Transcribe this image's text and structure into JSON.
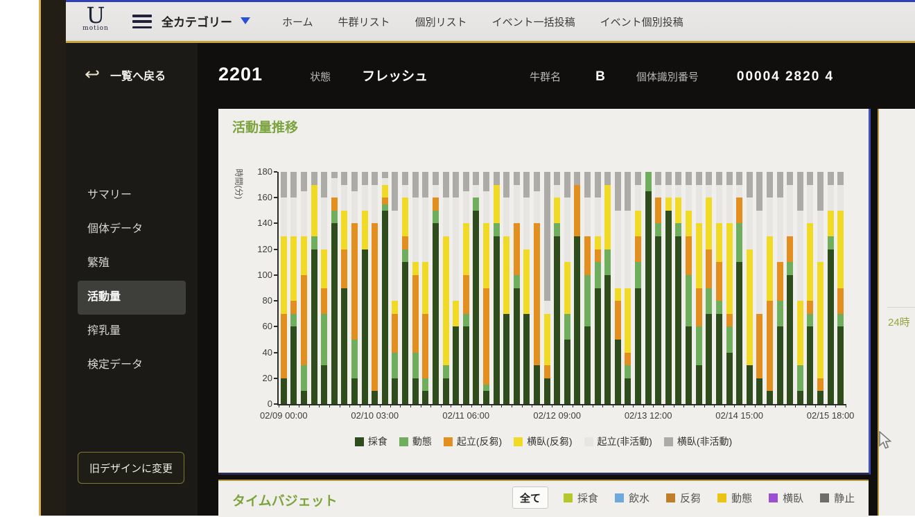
{
  "topbar": {
    "logo": {
      "main": "U",
      "sub": "motion"
    },
    "category_label": "全カテゴリー",
    "nav_items": [
      "ホーム",
      "牛群リスト",
      "個別リスト",
      "イベント一括投稿",
      "イベント個別投稿"
    ]
  },
  "sidebar": {
    "back_label": "一覧へ戻る",
    "items": [
      {
        "label": "サマリー",
        "active": false
      },
      {
        "label": "個体データ",
        "active": false
      },
      {
        "label": "繁殖",
        "active": false
      },
      {
        "label": "活動量",
        "active": true
      },
      {
        "label": "搾乳量",
        "active": false
      },
      {
        "label": "検定データ",
        "active": false
      }
    ],
    "old_design_button": "旧デザインに変更"
  },
  "header": {
    "cow_id": "2201",
    "fields": [
      {
        "label": "状態",
        "value": "フレッシュ"
      },
      {
        "label": "牛群名",
        "value": "B"
      },
      {
        "label": "個体識別番号",
        "value": "00004 2820 4"
      }
    ]
  },
  "activity_card": {
    "title": "活動量推移"
  },
  "chart_data": {
    "type": "bar",
    "stacked": true,
    "title": "活動量推移",
    "xlabel": "",
    "ylabel": "時間(分)",
    "ylim": [
      0,
      180
    ],
    "yticks": [
      0,
      20,
      40,
      60,
      80,
      100,
      120,
      140,
      160,
      180
    ],
    "bar_interval_hours": 3,
    "first_bar_time": "02/09 00:00",
    "xtick_labels": [
      "02/09 00:00",
      "02/10 03:00",
      "02/11 06:00",
      "02/12 09:00",
      "02/13 12:00",
      "02/14 15:00",
      "02/15 18:00"
    ],
    "xtick_bar_indexes": [
      0,
      9,
      18,
      27,
      36,
      45,
      54
    ],
    "legend_position": "bottom",
    "grid": false,
    "series_names": [
      "採食",
      "動態",
      "起立(反芻)",
      "横臥(反芻)",
      "起立(非活動)",
      "横臥(非活動)"
    ],
    "series_colors": [
      "#2e4c1c",
      "#6fae5c",
      "#e28f1f",
      "#f1da25",
      "#e7e6e2",
      "#acaba8"
    ],
    "bars": [
      [
        20,
        0,
        50,
        60,
        30,
        20
      ],
      [
        60,
        10,
        10,
        50,
        30,
        20
      ],
      [
        10,
        20,
        70,
        30,
        35,
        15
      ],
      [
        120,
        10,
        0,
        40,
        0,
        10
      ],
      [
        30,
        40,
        20,
        30,
        40,
        20
      ],
      [
        140,
        10,
        10,
        0,
        15,
        5
      ],
      [
        90,
        0,
        30,
        30,
        20,
        10
      ],
      [
        20,
        30,
        90,
        0,
        25,
        15
      ],
      [
        120,
        0,
        0,
        30,
        20,
        10
      ],
      [
        10,
        0,
        130,
        0,
        30,
        10
      ],
      [
        150,
        5,
        5,
        10,
        5,
        5
      ],
      [
        20,
        20,
        30,
        10,
        70,
        30
      ],
      [
        110,
        10,
        10,
        30,
        10,
        10
      ],
      [
        20,
        20,
        60,
        10,
        50,
        20
      ],
      [
        10,
        10,
        50,
        40,
        50,
        20
      ],
      [
        140,
        10,
        10,
        0,
        10,
        10
      ],
      [
        20,
        10,
        0,
        100,
        30,
        20
      ],
      [
        60,
        0,
        0,
        20,
        80,
        20
      ],
      [
        60,
        10,
        30,
        40,
        25,
        15
      ],
      [
        150,
        10,
        0,
        0,
        10,
        10
      ],
      [
        10,
        5,
        75,
        50,
        25,
        15
      ],
      [
        130,
        10,
        0,
        30,
        0,
        10
      ],
      [
        70,
        0,
        0,
        60,
        30,
        20
      ],
      [
        90,
        10,
        40,
        0,
        30,
        10
      ],
      [
        70,
        0,
        0,
        50,
        40,
        20
      ],
      [
        30,
        0,
        110,
        0,
        25,
        15
      ],
      [
        20,
        0,
        10,
        40,
        10,
        100
      ],
      [
        130,
        10,
        0,
        20,
        10,
        10
      ],
      [
        50,
        20,
        0,
        40,
        50,
        20
      ],
      [
        130,
        0,
        40,
        0,
        0,
        10
      ],
      [
        60,
        40,
        30,
        0,
        30,
        20
      ],
      [
        90,
        20,
        10,
        10,
        30,
        20
      ],
      [
        100,
        20,
        0,
        50,
        0,
        10
      ],
      [
        50,
        0,
        30,
        10,
        60,
        30
      ],
      [
        20,
        10,
        10,
        50,
        60,
        30
      ],
      [
        90,
        20,
        20,
        20,
        20,
        10
      ],
      [
        165,
        15,
        0,
        0,
        0,
        0
      ],
      [
        130,
        10,
        20,
        0,
        10,
        10
      ],
      [
        150,
        0,
        0,
        10,
        10,
        10
      ],
      [
        130,
        10,
        0,
        20,
        10,
        10
      ],
      [
        60,
        40,
        30,
        20,
        20,
        10
      ],
      [
        30,
        30,
        30,
        50,
        30,
        10
      ],
      [
        70,
        20,
        30,
        40,
        10,
        10
      ],
      [
        70,
        10,
        30,
        30,
        30,
        10
      ],
      [
        40,
        20,
        10,
        70,
        30,
        10
      ],
      [
        110,
        30,
        20,
        0,
        10,
        10
      ],
      [
        30,
        0,
        0,
        90,
        40,
        20
      ],
      [
        20,
        0,
        50,
        0,
        80,
        30
      ],
      [
        10,
        0,
        70,
        50,
        30,
        20
      ],
      [
        60,
        20,
        30,
        0,
        50,
        20
      ],
      [
        100,
        10,
        20,
        0,
        40,
        10
      ],
      [
        10,
        20,
        0,
        50,
        70,
        30
      ],
      [
        60,
        10,
        10,
        60,
        30,
        10
      ],
      [
        10,
        0,
        10,
        90,
        40,
        30
      ],
      [
        120,
        10,
        0,
        20,
        20,
        10
      ],
      [
        60,
        10,
        20,
        60,
        20,
        10
      ]
    ]
  },
  "timebudget_card": {
    "title": "タイムバジェット",
    "all_button": "全て",
    "legend": [
      {
        "label": "採食",
        "color": "#b6c72c"
      },
      {
        "label": "飲水",
        "color": "#6fa8da"
      },
      {
        "label": "反芻",
        "color": "#c17e28"
      },
      {
        "label": "動態",
        "color": "#e8c513"
      },
      {
        "label": "横臥",
        "color": "#9b50d2"
      },
      {
        "label": "静止",
        "color": "#6d6d6b"
      }
    ]
  },
  "right_panel": {
    "partial_text": "24時"
  }
}
